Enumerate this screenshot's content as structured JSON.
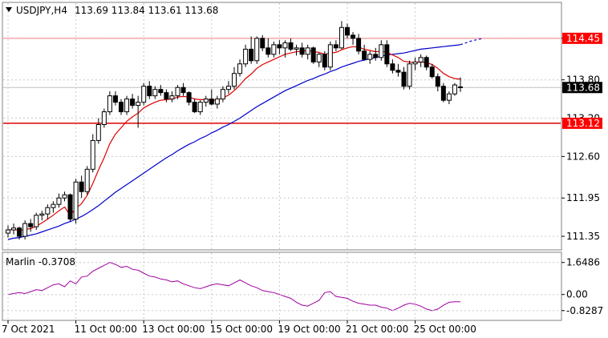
{
  "header": {
    "symbol_label": "USDJPY,H4",
    "ohlc_label": "113.69 113.84 113.61 113.68"
  },
  "indicator": {
    "name_label": "Marlin -0.3708"
  },
  "colors": {
    "bull": "#ffffff",
    "bear": "#000000",
    "wick": "#000000",
    "ma_fast": "#e00000",
    "ma_slow": "#0000cc",
    "level_line": "#e00000",
    "level_light": "#f08080",
    "osc": "#a000a0",
    "grid": "#c8c8c8",
    "price_tag_bg": "#ff0000",
    "current_tag_bg": "#000000"
  },
  "chart_data": [
    {
      "type": "candlestick",
      "title": "USDJPY,H4",
      "y_ticks": [
        "114.45",
        "113.80",
        "113.20",
        "112.60",
        "111.95",
        "111.35"
      ],
      "x_ticks": [
        "7 Oct 2021",
        "11 Oct 00:00",
        "13 Oct 00:00",
        "15 Oct 00:00",
        "19 Oct 00:00",
        "21 Oct 00:00",
        "25 Oct 00:00"
      ],
      "ylim": [
        111.15,
        115.0
      ],
      "levels": [
        {
          "value": 114.45,
          "label": "114.45"
        },
        {
          "value": 113.12,
          "label": "113.12"
        }
      ],
      "current_price": {
        "value": 113.68,
        "label": "113.68"
      },
      "candles": [
        [
          111.4,
          111.52,
          111.33,
          111.45
        ],
        [
          111.45,
          111.55,
          111.38,
          111.48
        ],
        [
          111.48,
          111.5,
          111.3,
          111.35
        ],
        [
          111.35,
          111.6,
          111.3,
          111.55
        ],
        [
          111.55,
          111.62,
          111.42,
          111.5
        ],
        [
          111.5,
          111.72,
          111.45,
          111.68
        ],
        [
          111.68,
          111.75,
          111.6,
          111.7
        ],
        [
          111.7,
          111.85,
          111.62,
          111.8
        ],
        [
          111.8,
          111.9,
          111.72,
          111.85
        ],
        [
          111.85,
          112.02,
          111.8,
          111.95
        ],
        [
          111.95,
          112.05,
          111.9,
          112.0
        ],
        [
          112.0,
          112.02,
          111.58,
          111.62
        ],
        [
          111.62,
          112.25,
          111.55,
          112.2
        ],
        [
          112.2,
          112.3,
          111.95,
          112.05
        ],
        [
          112.05,
          112.45,
          112.0,
          112.4
        ],
        [
          112.4,
          112.95,
          112.35,
          112.85
        ],
        [
          112.85,
          113.2,
          112.8,
          113.1
        ],
        [
          113.1,
          113.35,
          113.05,
          113.3
        ],
        [
          113.3,
          113.62,
          113.25,
          113.55
        ],
        [
          113.55,
          113.62,
          113.4,
          113.45
        ],
        [
          113.45,
          113.5,
          113.25,
          113.3
        ],
        [
          113.3,
          113.55,
          113.25,
          113.5
        ],
        [
          113.5,
          113.58,
          113.35,
          113.4
        ],
        [
          113.4,
          113.55,
          113.05,
          113.45
        ],
        [
          113.45,
          113.75,
          113.4,
          113.7
        ],
        [
          113.7,
          113.78,
          113.5,
          113.55
        ],
        [
          113.55,
          113.7,
          113.5,
          113.65
        ],
        [
          113.65,
          113.72,
          113.55,
          113.6
        ],
        [
          113.6,
          113.65,
          113.45,
          113.5
        ],
        [
          113.5,
          113.62,
          113.45,
          113.55
        ],
        [
          113.55,
          113.72,
          113.5,
          113.68
        ],
        [
          113.68,
          113.75,
          113.55,
          113.6
        ],
        [
          113.6,
          113.62,
          113.4,
          113.45
        ],
        [
          113.45,
          113.5,
          113.28,
          113.3
        ],
        [
          113.3,
          113.48,
          113.25,
          113.45
        ],
        [
          113.45,
          113.55,
          113.38,
          113.5
        ],
        [
          113.5,
          113.65,
          113.4,
          113.42
        ],
        [
          113.42,
          113.55,
          113.35,
          113.5
        ],
        [
          113.5,
          113.7,
          113.45,
          113.65
        ],
        [
          113.65,
          113.78,
          113.58,
          113.7
        ],
        [
          113.7,
          114.0,
          113.65,
          113.9
        ],
        [
          113.9,
          114.12,
          113.85,
          114.05
        ],
        [
          114.05,
          114.35,
          114.0,
          114.28
        ],
        [
          114.28,
          114.48,
          114.05,
          114.1
        ],
        [
          114.1,
          114.48,
          114.05,
          114.45
        ],
        [
          114.45,
          114.5,
          114.25,
          114.3
        ],
        [
          114.3,
          114.45,
          114.15,
          114.2
        ],
        [
          114.2,
          114.4,
          114.15,
          114.35
        ],
        [
          114.35,
          114.42,
          114.2,
          114.3
        ],
        [
          114.3,
          114.42,
          114.15,
          114.38
        ],
        [
          114.38,
          114.45,
          114.25,
          114.28
        ],
        [
          114.28,
          114.35,
          114.18,
          114.3
        ],
        [
          114.3,
          114.38,
          114.15,
          114.2
        ],
        [
          114.2,
          114.35,
          114.12,
          114.3
        ],
        [
          114.3,
          114.32,
          114.05,
          114.08
        ],
        [
          114.08,
          114.22,
          114.0,
          114.2
        ],
        [
          114.2,
          114.25,
          113.95,
          114.0
        ],
        [
          114.0,
          114.4,
          113.95,
          114.35
        ],
        [
          114.35,
          114.42,
          114.25,
          114.3
        ],
        [
          114.3,
          114.72,
          114.28,
          114.62
        ],
        [
          114.62,
          114.68,
          114.45,
          114.5
        ],
        [
          114.5,
          114.55,
          114.35,
          114.45
        ],
        [
          114.45,
          114.52,
          114.2,
          114.25
        ],
        [
          114.25,
          114.35,
          114.1,
          114.12
        ],
        [
          114.12,
          114.25,
          114.05,
          114.2
        ],
        [
          114.2,
          114.3,
          114.1,
          114.15
        ],
        [
          114.15,
          114.42,
          114.1,
          114.35
        ],
        [
          114.35,
          114.42,
          114.0,
          114.05
        ],
        [
          114.05,
          114.12,
          113.9,
          113.95
        ],
        [
          113.95,
          114.05,
          113.85,
          113.92
        ],
        [
          113.92,
          114.0,
          113.65,
          113.7
        ],
        [
          113.7,
          114.1,
          113.65,
          114.05
        ],
        [
          114.05,
          114.15,
          113.95,
          114.08
        ],
        [
          114.08,
          114.2,
          114.0,
          114.15
        ],
        [
          114.15,
          114.18,
          113.95,
          114.0
        ],
        [
          114.0,
          114.05,
          113.82,
          113.85
        ],
        [
          113.85,
          113.9,
          113.62,
          113.7
        ],
        [
          113.7,
          113.75,
          113.45,
          113.48
        ],
        [
          113.48,
          113.62,
          113.42,
          113.58
        ],
        [
          113.58,
          113.75,
          113.55,
          113.72
        ],
        [
          113.69,
          113.84,
          113.61,
          113.68
        ]
      ],
      "ma_fast": [
        111.45,
        111.46,
        111.44,
        111.46,
        111.47,
        111.51,
        111.56,
        111.62,
        111.68,
        111.75,
        111.81,
        111.68,
        111.79,
        111.86,
        111.99,
        112.18,
        112.39,
        112.58,
        112.8,
        112.95,
        113.05,
        113.15,
        113.22,
        113.28,
        113.36,
        113.41,
        113.45,
        113.48,
        113.49,
        113.5,
        113.53,
        113.54,
        113.53,
        113.5,
        113.49,
        113.49,
        113.48,
        113.48,
        113.52,
        113.56,
        113.63,
        113.72,
        113.82,
        113.89,
        113.98,
        114.04,
        114.08,
        114.12,
        114.16,
        114.2,
        114.22,
        114.24,
        114.25,
        114.26,
        114.24,
        114.23,
        114.2,
        114.22,
        114.23,
        114.27,
        114.3,
        114.32,
        114.31,
        114.28,
        114.26,
        114.24,
        114.25,
        114.23,
        114.19,
        114.15,
        114.09,
        114.08,
        114.07,
        114.08,
        114.07,
        114.04,
        113.98,
        113.9,
        113.85,
        113.82,
        113.81
      ],
      "ma_slow": [
        111.3,
        111.32,
        111.33,
        111.35,
        111.37,
        111.39,
        111.42,
        111.45,
        111.48,
        111.51,
        111.55,
        111.58,
        111.62,
        111.66,
        111.71,
        111.77,
        111.83,
        111.9,
        111.97,
        112.04,
        112.1,
        112.16,
        112.22,
        112.28,
        112.34,
        112.4,
        112.46,
        112.52,
        112.58,
        112.63,
        112.69,
        112.74,
        112.79,
        112.83,
        112.88,
        112.92,
        112.97,
        113.01,
        113.06,
        113.1,
        113.15,
        113.2,
        113.26,
        113.32,
        113.38,
        113.43,
        113.48,
        113.53,
        113.58,
        113.63,
        113.67,
        113.71,
        113.75,
        113.79,
        113.82,
        113.86,
        113.89,
        113.93,
        113.96,
        114.0,
        114.03,
        114.06,
        114.09,
        114.11,
        114.13,
        114.15,
        114.17,
        114.19,
        114.2,
        114.21,
        114.22,
        114.24,
        114.26,
        114.28,
        114.29,
        114.3,
        114.31,
        114.32,
        114.33,
        114.34,
        114.35
      ],
      "ma_slow_projection": [
        114.35,
        114.38,
        114.41,
        114.43,
        114.45
      ]
    },
    {
      "type": "line",
      "title": "Marlin -0.3708",
      "y_ticks": [
        "1.6486",
        "0.00",
        "-0.8287"
      ],
      "ylim": [
        -1.25,
        2.05
      ],
      "values": [
        0.0,
        0.05,
        0.1,
        0.05,
        0.15,
        0.25,
        0.2,
        0.35,
        0.5,
        0.55,
        0.4,
        0.7,
        0.55,
        0.9,
        0.95,
        1.2,
        1.35,
        1.5,
        1.6486,
        1.55,
        1.4,
        1.45,
        1.3,
        1.25,
        1.1,
        0.95,
        0.9,
        0.8,
        0.75,
        0.65,
        0.7,
        0.55,
        0.45,
        0.35,
        0.3,
        0.4,
        0.5,
        0.55,
        0.5,
        0.45,
        0.6,
        0.75,
        0.6,
        0.45,
        0.35,
        0.2,
        0.15,
        0.1,
        0.0,
        -0.1,
        -0.2,
        -0.4,
        -0.55,
        -0.6,
        -0.45,
        -0.3,
        0.1,
        0.15,
        -0.1,
        -0.15,
        -0.2,
        -0.35,
        -0.45,
        -0.5,
        -0.55,
        -0.55,
        -0.65,
        -0.7,
        -0.8287,
        -0.7,
        -0.55,
        -0.45,
        -0.5,
        -0.6,
        -0.75,
        -0.8287,
        -0.75,
        -0.55,
        -0.4,
        -0.3708,
        -0.3708
      ]
    }
  ]
}
